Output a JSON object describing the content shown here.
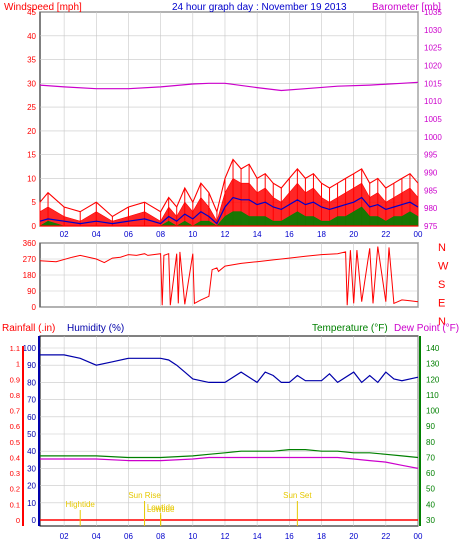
{
  "colors": {
    "wind": "#ff0000",
    "gust": "#ff0000",
    "avg": "#0000cc",
    "green": "#008000",
    "baro": "#cc00cc",
    "hum": "#0000aa",
    "temp": "#008000",
    "dew": "#cc00cc",
    "rain": "#ff0000",
    "events": "#e6c800",
    "grid": "#c8c8c8",
    "frame": "#000000"
  },
  "chart_data": [
    {
      "type": "line",
      "title": "24 hour graph day : November 19 2013",
      "ylabel_left": "Windspeed [mph]",
      "ylabel_right": "Barometer [mb]",
      "x_ticks": [
        "02",
        "04",
        "06",
        "08",
        "10",
        "12",
        "14",
        "16",
        "18",
        "20",
        "22",
        "00"
      ],
      "y_left_ticks": [
        "0",
        "5",
        "10",
        "15",
        "20",
        "25",
        "30",
        "35",
        "40",
        "45"
      ],
      "y_left_range": [
        0,
        45
      ],
      "y_right_ticks": [
        "975",
        "980",
        "985",
        "990",
        "995",
        "1000",
        "1005",
        "1010",
        "1015",
        "1020",
        "1025",
        "1030",
        "1035"
      ],
      "y_right_range": [
        975,
        1035
      ],
      "x_range": [
        0.5,
        24
      ],
      "grid": true,
      "series": [
        {
          "key": "baro",
          "color_key": "baro",
          "kind": "line",
          "axis": "right",
          "x": [
            0.5,
            2,
            4,
            6,
            8,
            10,
            11,
            12,
            14,
            15.5,
            17,
            19,
            21,
            23,
            24
          ],
          "values": [
            1014.5,
            1014,
            1013.5,
            1013.5,
            1014,
            1014.8,
            1015,
            1015,
            1013.8,
            1013,
            1013.5,
            1014.2,
            1014.5,
            1015,
            1015.3
          ]
        },
        {
          "key": "gust",
          "color_key": "gust",
          "kind": "gust",
          "axis": "left",
          "x": [
            0.5,
            1,
            2,
            3,
            4,
            5,
            6,
            7,
            8,
            8.5,
            9,
            9.5,
            10,
            10.5,
            11,
            11.5,
            12,
            12.5,
            13,
            13.5,
            14,
            14.5,
            15,
            15.5,
            16,
            16.5,
            17,
            17.5,
            18,
            18.5,
            19,
            19.5,
            20,
            20.5,
            21,
            21.5,
            22,
            22.5,
            23,
            23.5,
            24
          ],
          "values": [
            5,
            7,
            4,
            3,
            5,
            2,
            4,
            5,
            3,
            6,
            4,
            8,
            5,
            9,
            7,
            3,
            10,
            14,
            12,
            13,
            10,
            11,
            9,
            8,
            10,
            12,
            10,
            11,
            9,
            8,
            9,
            10,
            11,
            12,
            9,
            10,
            8,
            9,
            10,
            11,
            9
          ]
        },
        {
          "key": "wind",
          "color_key": "wind",
          "kind": "fill",
          "axis": "left",
          "x": [
            0.5,
            1,
            2,
            3,
            4,
            5,
            6,
            7,
            8,
            8.5,
            9,
            9.5,
            10,
            10.5,
            11,
            11.5,
            12,
            12.5,
            13,
            13.5,
            14,
            14.5,
            15,
            15.5,
            16,
            16.5,
            17,
            17.5,
            18,
            18.5,
            19,
            19.5,
            20,
            20.5,
            21,
            21.5,
            22,
            22.5,
            23,
            23.5,
            24
          ],
          "values": [
            3,
            4,
            2,
            1,
            3,
            1,
            2,
            3,
            1,
            4,
            2,
            5,
            3,
            6,
            4,
            1,
            7,
            10,
            9,
            9,
            7,
            8,
            6,
            5,
            7,
            9,
            7,
            8,
            6,
            5,
            6,
            7,
            8,
            9,
            6,
            7,
            5,
            6,
            7,
            8,
            6
          ]
        },
        {
          "key": "avg",
          "color_key": "avg",
          "kind": "line",
          "axis": "left",
          "x": [
            0.5,
            1,
            2,
            3,
            4,
            5,
            6,
            7,
            8,
            8.5,
            9,
            9.5,
            10,
            10.5,
            11,
            11.5,
            12,
            12.5,
            13,
            13.5,
            14,
            14.5,
            15,
            15.5,
            16,
            16.5,
            17,
            17.5,
            18,
            18.5,
            19,
            19.5,
            20,
            20.5,
            21,
            21.5,
            22,
            22.5,
            23,
            23.5,
            24
          ],
          "values": [
            1,
            1.5,
            1,
            0.5,
            1,
            0.5,
            1,
            1.5,
            0.5,
            2,
            1,
            2.5,
            1.5,
            3,
            2,
            0.5,
            4,
            6,
            5.5,
            5.5,
            4.5,
            5,
            4,
            3.5,
            4.5,
            5.5,
            4.5,
            5,
            4,
            3.5,
            4,
            4.5,
            5,
            6,
            4,
            4.5,
            3.5,
            4,
            4.5,
            5,
            4
          ]
        },
        {
          "key": "green",
          "color_key": "green",
          "kind": "fill",
          "axis": "left",
          "x": [
            0.5,
            1,
            2,
            3,
            4,
            5,
            6,
            7,
            8,
            8.5,
            9,
            9.5,
            10,
            10.5,
            11,
            11.5,
            12,
            12.5,
            13,
            13.5,
            14,
            14.5,
            15,
            15.5,
            16,
            16.5,
            17,
            17.5,
            18,
            18.5,
            19,
            19.5,
            20,
            20.5,
            21,
            21.5,
            22,
            22.5,
            23,
            23.5,
            24
          ],
          "values": [
            0,
            1,
            0,
            0,
            0,
            0,
            0,
            0,
            0,
            1,
            0,
            1,
            0,
            1,
            1,
            0,
            2,
            3,
            3,
            2,
            2,
            2,
            1,
            1,
            2,
            3,
            2,
            2,
            1,
            1,
            2,
            2,
            3,
            4,
            2,
            2,
            1,
            2,
            2,
            3,
            2
          ]
        }
      ]
    },
    {
      "type": "line",
      "title": "",
      "ylabel_right_letters": [
        "N",
        "W",
        "S",
        "E",
        "N"
      ],
      "y_left_ticks": [
        "0",
        "90",
        "180",
        "270",
        "360"
      ],
      "y_range": [
        0,
        360
      ],
      "x_ticks": [
        "02",
        "04",
        "06",
        "08",
        "10",
        "12",
        "14",
        "16",
        "18",
        "20",
        "22",
        "00"
      ],
      "x_range": [
        0.5,
        24
      ],
      "grid": true,
      "series": [
        {
          "key": "dir",
          "color_key": "wind",
          "kind": "line",
          "x": [
            0.5,
            1.5,
            2.5,
            3,
            4,
            4.5,
            5,
            5.5,
            6,
            6.5,
            7,
            7.2,
            8,
            8.1,
            8.2,
            8.5,
            8.6,
            9,
            9.1,
            9.2,
            9.5,
            10,
            10.1,
            10.5,
            11,
            11.2,
            11.5,
            11.6,
            12,
            13,
            14,
            15,
            16,
            17,
            18,
            19,
            19.5,
            19.6,
            19.8,
            20,
            20.2,
            20.5,
            21,
            21.2,
            21.5,
            22,
            22.2,
            22.5,
            23,
            23.5,
            24
          ],
          "values": [
            260,
            255,
            280,
            290,
            270,
            250,
            275,
            280,
            295,
            290,
            300,
            290,
            300,
            10,
            290,
            300,
            10,
            300,
            20,
            310,
            15,
            300,
            20,
            40,
            60,
            210,
            220,
            200,
            230,
            245,
            255,
            265,
            275,
            285,
            295,
            300,
            310,
            10,
            320,
            20,
            320,
            30,
            330,
            20,
            340,
            30,
            335,
            20,
            40,
            35,
            30
          ]
        }
      ]
    },
    {
      "type": "line",
      "title": "",
      "ylabel_left": "Rainfall (.in)",
      "ylabel_left2": "Humidity (%)",
      "ylabel_right": "Temperature (°F)",
      "ylabel_right2": "Dew Point (°F)",
      "rain_ticks": [
        "0",
        "0.1",
        "0.2",
        "0.3",
        "0.4",
        "0.5",
        "0.6",
        "0.7",
        "0.8",
        "0.9",
        "1",
        "1.1"
      ],
      "hum_ticks": [
        "0",
        "10",
        "20",
        "30",
        "40",
        "50",
        "60",
        "70",
        "80",
        "90",
        "100"
      ],
      "temp_ticks": [
        "30",
        "40",
        "50",
        "60",
        "70",
        "80",
        "90",
        "100",
        "110",
        "120",
        "130",
        "140"
      ],
      "x_ticks": [
        "02",
        "04",
        "06",
        "08",
        "10",
        "12",
        "14",
        "16",
        "18",
        "20",
        "22",
        "00"
      ],
      "x_range": [
        0.5,
        24
      ],
      "grid": true,
      "series": [
        {
          "key": "hum",
          "color_key": "hum",
          "kind": "line",
          "axis": "hum",
          "x": [
            0.5,
            2,
            3,
            4,
            5,
            6,
            7,
            8,
            8.5,
            9,
            9.5,
            10,
            11,
            12,
            13,
            13.5,
            14,
            14.5,
            15,
            15.5,
            16,
            16.5,
            17,
            18,
            18.5,
            19,
            20,
            20.5,
            21,
            21.5,
            22,
            22.5,
            23,
            24
          ],
          "values": [
            96,
            96,
            94,
            90,
            92,
            94,
            94,
            94,
            93,
            90,
            86,
            82,
            80,
            80,
            86,
            83,
            80,
            86,
            84,
            80,
            80,
            84,
            81,
            81,
            85,
            80,
            86,
            80,
            84,
            80,
            86,
            82,
            81,
            83
          ]
        },
        {
          "key": "temp",
          "color_key": "temp",
          "kind": "line",
          "axis": "temp",
          "x": [
            0.5,
            2,
            4,
            6,
            8,
            10,
            11,
            12,
            13,
            14,
            15,
            16,
            17,
            18,
            19,
            20,
            21,
            22,
            23,
            24
          ],
          "values": [
            71,
            71,
            71,
            70,
            70,
            71,
            72,
            73,
            74,
            74,
            74,
            75,
            75,
            74,
            74,
            73,
            73,
            72,
            71,
            70
          ]
        },
        {
          "key": "dew",
          "color_key": "dew",
          "kind": "line",
          "axis": "temp",
          "x": [
            0.5,
            2,
            4,
            6,
            8,
            10,
            11,
            12,
            13,
            14,
            15,
            16,
            17,
            18,
            19,
            20,
            21,
            22,
            23,
            24
          ],
          "values": [
            69,
            69,
            69,
            68,
            68,
            69,
            70,
            70,
            70,
            70,
            70,
            70,
            70,
            70,
            70,
            69,
            68,
            67,
            65,
            63
          ]
        }
      ],
      "annotations": [
        {
          "label": "Lowtide",
          "x": 8,
          "y_label": "high"
        },
        {
          "label": "Sun Rise",
          "x": 7,
          "y_label": "mid"
        },
        {
          "label": "Lowtide",
          "x": 8,
          "y_label": "low"
        },
        {
          "label": "Sun Set",
          "x": 16.5,
          "y_label": "mid"
        },
        {
          "label": "Hightide",
          "x": 3,
          "y_label": "mid2"
        }
      ]
    }
  ]
}
